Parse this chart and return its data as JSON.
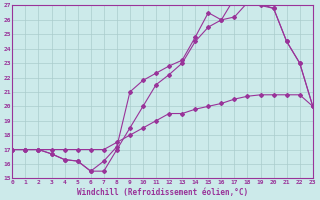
{
  "title": "",
  "xlabel": "Windchill (Refroidissement éolien,°C)",
  "ylabel": "",
  "bg_color": "#cceaea",
  "line_color": "#993399",
  "grid_color": "#aacccc",
  "xmin": 0,
  "xmax": 23,
  "ymin": 15,
  "ymax": 27,
  "line1_x": [
    0,
    1,
    2,
    3,
    4,
    5,
    6,
    7,
    8,
    9,
    10,
    11,
    12,
    13,
    14,
    15,
    16,
    17,
    18,
    19,
    20,
    21,
    22,
    23
  ],
  "line1_y": [
    17.0,
    17.0,
    17.0,
    17.0,
    17.0,
    17.0,
    17.0,
    17.0,
    17.5,
    18.0,
    18.5,
    19.0,
    19.5,
    19.5,
    19.8,
    20.0,
    20.2,
    20.5,
    20.7,
    20.8,
    20.8,
    20.8,
    20.8,
    20.0
  ],
  "line2_x": [
    0,
    1,
    2,
    3,
    4,
    5,
    6,
    7,
    8,
    9,
    10,
    11,
    12,
    13,
    14,
    15,
    16,
    17,
    18,
    19,
    20,
    21,
    22,
    23
  ],
  "line2_y": [
    17.0,
    17.0,
    17.0,
    16.7,
    16.3,
    16.2,
    15.5,
    15.5,
    17.0,
    18.5,
    20.0,
    21.5,
    22.2,
    23.0,
    24.5,
    25.5,
    26.0,
    26.2,
    27.2,
    27.0,
    26.8,
    24.5,
    23.0,
    20.0
  ],
  "line3_x": [
    0,
    1,
    2,
    3,
    4,
    5,
    6,
    7,
    8,
    9,
    10,
    11,
    12,
    13,
    14,
    15,
    16,
    17,
    18,
    19,
    20,
    21,
    22,
    23
  ],
  "line3_y": [
    17.0,
    17.0,
    17.0,
    16.7,
    16.3,
    16.2,
    15.5,
    16.2,
    17.2,
    21.0,
    21.8,
    22.3,
    22.8,
    23.2,
    24.8,
    26.5,
    26.0,
    27.5,
    27.3,
    27.1,
    26.8,
    24.5,
    23.0,
    20.0
  ]
}
